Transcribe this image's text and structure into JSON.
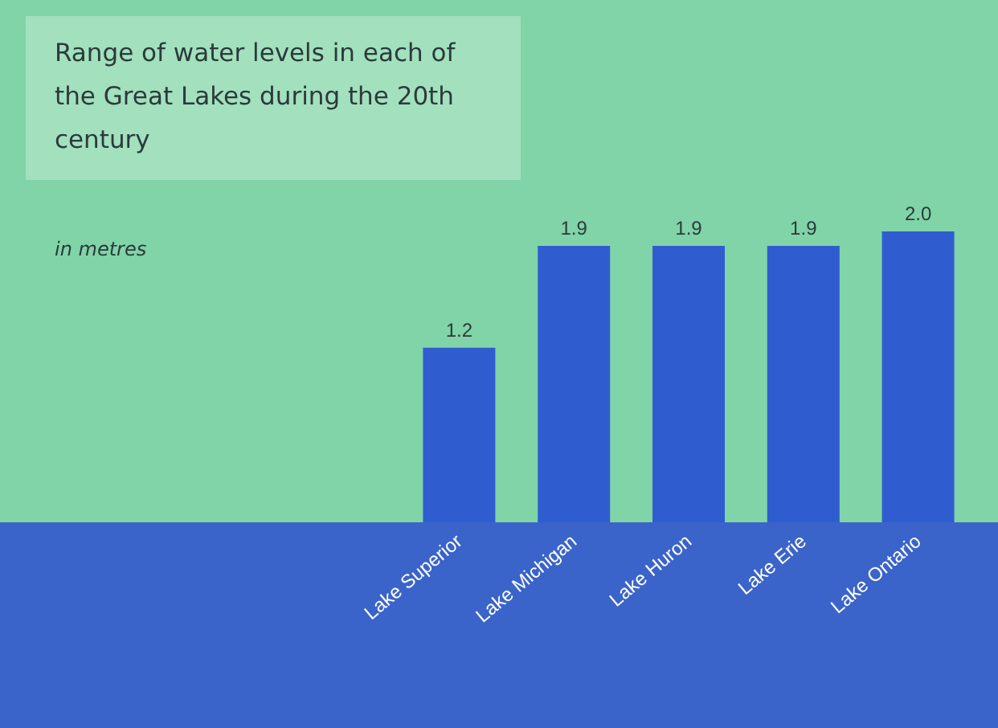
{
  "chart_data": {
    "type": "bar",
    "title": "Range of water levels in each of the Great Lakes during the 20th century",
    "subtitle": "in metres",
    "categories": [
      "Lake Superior",
      "Lake Michigan",
      "Lake Huron",
      "Lake Erie",
      "Lake Ontario"
    ],
    "values": [
      1.2,
      1.9,
      1.9,
      1.9,
      2.0
    ],
    "color": "#2f5dcf",
    "value_labels": [
      "1.2",
      "1.9",
      "1.9",
      "1.9",
      "2.0"
    ]
  }
}
